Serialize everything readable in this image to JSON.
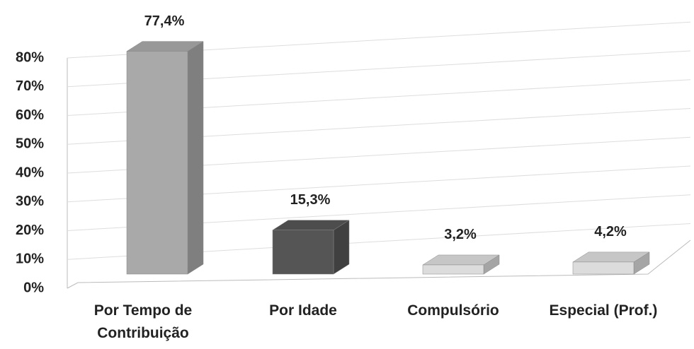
{
  "chart_data": {
    "type": "bar",
    "categories": [
      "Por Tempo de Contribuição",
      "Por Idade",
      "Compulsório",
      "Especial (Prof.)"
    ],
    "values": [
      77.4,
      15.3,
      3.2,
      4.2
    ],
    "value_labels": [
      "77,4%",
      "15,3%",
      "3,2%",
      "4,2%"
    ],
    "colors": [
      "#a9a9a9",
      "#555555",
      "#dcdcdc",
      "#dcdcdc"
    ],
    "ylim": [
      0,
      80
    ],
    "yticks": [
      {
        "value": 0,
        "label": "0%"
      },
      {
        "value": 10,
        "label": "10%"
      },
      {
        "value": 20,
        "label": "20%"
      },
      {
        "value": 30,
        "label": "30%"
      },
      {
        "value": 40,
        "label": "40%"
      },
      {
        "value": 50,
        "label": "50%"
      },
      {
        "value": 60,
        "label": "60%"
      },
      {
        "value": 70,
        "label": "70%"
      },
      {
        "value": 80,
        "label": "80%"
      }
    ],
    "grid": true
  }
}
